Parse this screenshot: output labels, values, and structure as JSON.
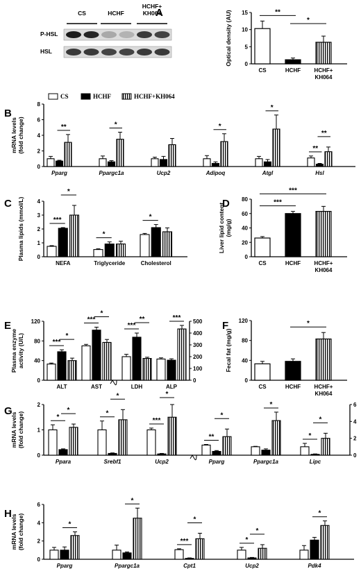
{
  "patterns": {
    "open": "#ffffff",
    "solid": "#000000"
  },
  "legend": [
    "CS",
    "HCHF",
    "HCHF+KH064"
  ],
  "blot": {
    "groups": [
      "CS",
      "HCHF",
      "HCHF+\nKH064"
    ],
    "rows": [
      "P-HSL",
      "HSL"
    ]
  },
  "chart_data": [
    {
      "id": "A",
      "type": "bar",
      "ylabel": "Optical density (AU)",
      "ylim": [
        0,
        15
      ],
      "yticks": [
        0,
        5,
        10,
        15
      ],
      "categories": [
        "CS",
        "HCHF",
        "HCHF+\nKH064"
      ],
      "values": [
        10.3,
        1.2,
        6.3
      ],
      "errors": [
        2.2,
        0.5,
        1.8
      ],
      "sig": [
        {
          "from": 0,
          "to": 1,
          "label": "**"
        },
        {
          "from": 1,
          "to": 2,
          "label": "*"
        }
      ]
    },
    {
      "id": "B",
      "type": "bar",
      "ylabel": "mRNA levels\n(fold change)",
      "ylim": [
        0,
        8
      ],
      "yticks": [
        0,
        2,
        4,
        6,
        8
      ],
      "categories": [
        "Pparg",
        "Ppargc1a",
        "Ucp2",
        "Adipoq",
        "Atgl",
        "Hsl"
      ],
      "series": [
        {
          "name": "CS",
          "values": [
            1.0,
            1.0,
            1.0,
            1.0,
            1.0,
            1.1
          ]
        },
        {
          "name": "HCHF",
          "values": [
            0.7,
            0.6,
            0.9,
            0.4,
            0.6,
            0.3
          ]
        },
        {
          "name": "HCHF+KH064",
          "values": [
            3.1,
            3.5,
            2.8,
            3.2,
            4.8,
            1.9
          ]
        }
      ],
      "errors": [
        [
          0.3,
          0.35,
          0.2,
          0.4,
          0.3,
          0.25
        ],
        [
          0.1,
          0.15,
          0.4,
          0.2,
          0.3,
          0.1
        ],
        [
          1.0,
          0.9,
          0.8,
          1.0,
          1.8,
          0.6
        ]
      ],
      "sig": [
        {
          "cat": 0,
          "from": 1,
          "to": 2,
          "label": "**"
        },
        {
          "cat": 1,
          "from": 1,
          "to": 2,
          "label": "*"
        },
        {
          "cat": 3,
          "from": 1,
          "to": 2,
          "label": "*"
        },
        {
          "cat": 4,
          "from": 1,
          "to": 2,
          "label": "*"
        },
        {
          "cat": 5,
          "from": 0,
          "to": 1,
          "label": "**"
        },
        {
          "cat": 5,
          "from": 1,
          "to": 2,
          "label": "**"
        }
      ]
    },
    {
      "id": "C",
      "type": "bar",
      "ylabel": "Plasma lipids (mmol/L)",
      "ylim": [
        0,
        4
      ],
      "yticks": [
        0,
        1,
        2,
        3,
        4
      ],
      "categories": [
        "NEFA",
        "Triglyceride",
        "Cholesterol"
      ],
      "series": [
        {
          "name": "CS",
          "values": [
            0.75,
            0.52,
            1.6
          ]
        },
        {
          "name": "HCHF",
          "values": [
            2.05,
            0.92,
            2.1
          ]
        },
        {
          "name": "HCHF+KH064",
          "values": [
            3.0,
            0.92,
            1.8
          ]
        }
      ],
      "errors": [
        [
          0.05,
          0.05,
          0.08
        ],
        [
          0.05,
          0.15,
          0.22
        ],
        [
          0.7,
          0.2,
          0.28
        ]
      ],
      "sig": [
        {
          "cat": 0,
          "from": 0,
          "to": 1,
          "label": "***"
        },
        {
          "cat": 0,
          "from": 1,
          "to": 2,
          "label": "*"
        },
        {
          "cat": 1,
          "from": 0,
          "to": 1,
          "label": "*"
        },
        {
          "cat": 2,
          "from": 0,
          "to": 1,
          "label": "*"
        }
      ]
    },
    {
      "id": "D",
      "type": "bar",
      "ylabel": "Liver lipid content\n(mg/g)",
      "ylim": [
        0,
        80
      ],
      "yticks": [
        0,
        20,
        40,
        60,
        80
      ],
      "categories": [
        "CS",
        "HCHF",
        "HCHF+\nKH064"
      ],
      "values": [
        26,
        60,
        63
      ],
      "errors": [
        2,
        3,
        7
      ],
      "sig": [
        {
          "from": 0,
          "to": 1,
          "label": "***"
        },
        {
          "from": 0,
          "to": 2,
          "label": "***"
        }
      ]
    },
    {
      "id": "E",
      "type": "bar",
      "ylabel": "Plasma enzyme\nactivity (U/L)",
      "ylim": [
        0,
        120
      ],
      "yticks": [
        0,
        40,
        80,
        120
      ],
      "ylim_right": [
        0,
        500
      ],
      "yticks_right": [
        0,
        100,
        200,
        300,
        400,
        500
      ],
      "categories": [
        "ALT",
        "AST",
        "LDH",
        "ALP"
      ],
      "series": [
        {
          "name": "CS",
          "values": [
            33,
            70,
            200,
            180
          ]
        },
        {
          "name": "HCHF",
          "values": [
            58,
            102,
            365,
            170
          ]
        },
        {
          "name": "HCHF+KH064",
          "values": [
            40,
            77,
            185,
            435
          ]
        }
      ],
      "errors": [
        [
          2,
          3,
          20,
          10
        ],
        [
          4,
          6,
          35,
          12
        ],
        [
          5,
          6,
          10,
          30
        ]
      ],
      "sig": [
        {
          "cat": 0,
          "from": 0,
          "to": 1,
          "label": "***"
        },
        {
          "cat": 0,
          "from": 1,
          "to": 2,
          "label": "*"
        },
        {
          "cat": 1,
          "from": 0,
          "to": 1,
          "label": "***"
        },
        {
          "cat": 1,
          "from": 1,
          "to": 2,
          "label": "*"
        },
        {
          "cat": 2,
          "from": 0,
          "to": 1,
          "label": "***"
        },
        {
          "cat": 2,
          "from": 1,
          "to": 2,
          "label": "**"
        },
        {
          "cat": 3,
          "from": 1,
          "to": 2,
          "label": "***"
        }
      ]
    },
    {
      "id": "F",
      "type": "bar",
      "ylabel": "Fecal fat (mg/g)",
      "ylim": [
        0,
        120
      ],
      "yticks": [
        0,
        40,
        80,
        120
      ],
      "categories": [
        "CS",
        "HCHF",
        "HCHF+\nKH064"
      ],
      "values": [
        33,
        38,
        83
      ],
      "errors": [
        5,
        5,
        13
      ],
      "sig": [
        {
          "from": 1,
          "to": 2,
          "label": "*"
        }
      ]
    },
    {
      "id": "G",
      "type": "bar",
      "ylabel": "mRNA levels\n(fold change)",
      "ylim": [
        0,
        2
      ],
      "yticks": [
        0,
        1,
        2
      ],
      "ylim_right": [
        0,
        6
      ],
      "yticks_right": [
        0,
        2,
        4,
        6
      ],
      "categories": [
        "Ppara",
        "Srebf1",
        "Ucp2",
        "Pparg",
        "Ppargc1a",
        "Lipc"
      ],
      "series": [
        {
          "name": "CS",
          "values": [
            1.0,
            1.0,
            1.0,
            1.2,
            1.0,
            1.0
          ]
        },
        {
          "name": "HCHF",
          "values": [
            0.22,
            0.07,
            0.05,
            0.45,
            0.6,
            0.1
          ]
        },
        {
          "name": "HCHF+KH064",
          "values": [
            1.1,
            1.4,
            1.5,
            2.2,
            4.1,
            2.0
          ]
        }
      ],
      "errors": [
        [
          0.2,
          0.35,
          0.07,
          0.07,
          0.05,
          0.4
        ],
        [
          0.03,
          0.02,
          0.02,
          0.1,
          0.15,
          0.05
        ],
        [
          0.13,
          0.4,
          0.5,
          0.9,
          1.0,
          0.6
        ]
      ],
      "sig": [
        {
          "cat": 0,
          "from": 0,
          "to": 1,
          "label": "*"
        },
        {
          "cat": 0,
          "from": 1,
          "to": 2,
          "label": "*"
        },
        {
          "cat": 1,
          "from": 0,
          "to": 1,
          "label": "*"
        },
        {
          "cat": 1,
          "from": 1,
          "to": 2,
          "label": "*"
        },
        {
          "cat": 2,
          "from": 0,
          "to": 1,
          "label": "***"
        },
        {
          "cat": 2,
          "from": 1,
          "to": 2,
          "label": "*"
        },
        {
          "cat": 3,
          "from": 0,
          "to": 1,
          "label": "**"
        },
        {
          "cat": 3,
          "from": 1,
          "to": 2,
          "label": "*"
        },
        {
          "cat": 4,
          "from": 1,
          "to": 2,
          "label": "*"
        },
        {
          "cat": 5,
          "from": 0,
          "to": 1,
          "label": "*"
        },
        {
          "cat": 5,
          "from": 1,
          "to": 2,
          "label": "*"
        }
      ]
    },
    {
      "id": "H",
      "type": "bar",
      "ylabel": "mRNA levels\n(fold change)",
      "ylim": [
        0,
        6
      ],
      "yticks": [
        0,
        2,
        4,
        6
      ],
      "categories": [
        "Pparg",
        "Ppargc1a",
        "Cpt1",
        "Ucp2",
        "Pdk4"
      ],
      "series": [
        {
          "name": "CS",
          "values": [
            1.0,
            1.0,
            1.05,
            1.0,
            1.0
          ]
        },
        {
          "name": "HCHF",
          "values": [
            1.0,
            0.7,
            0.1,
            0.15,
            2.1
          ]
        },
        {
          "name": "HCHF+KH064",
          "values": [
            2.6,
            4.5,
            2.25,
            1.2,
            3.7
          ]
        }
      ],
      "errors": [
        [
          0.3,
          0.55,
          0.1,
          0.3,
          0.5
        ],
        [
          0.35,
          0.1,
          0.05,
          0.05,
          0.3
        ],
        [
          0.4,
          1.1,
          0.6,
          0.4,
          0.5
        ]
      ],
      "sig": [
        {
          "cat": 0,
          "from": 1,
          "to": 2,
          "label": "*"
        },
        {
          "cat": 1,
          "from": 1,
          "to": 2,
          "label": "*"
        },
        {
          "cat": 2,
          "from": 0,
          "to": 1,
          "label": "***"
        },
        {
          "cat": 2,
          "from": 1,
          "to": 2,
          "label": "*"
        },
        {
          "cat": 3,
          "from": 0,
          "to": 1,
          "label": "*"
        },
        {
          "cat": 3,
          "from": 1,
          "to": 2,
          "label": "*"
        },
        {
          "cat": 4,
          "from": 1,
          "to": 2,
          "label": "*"
        }
      ]
    }
  ]
}
